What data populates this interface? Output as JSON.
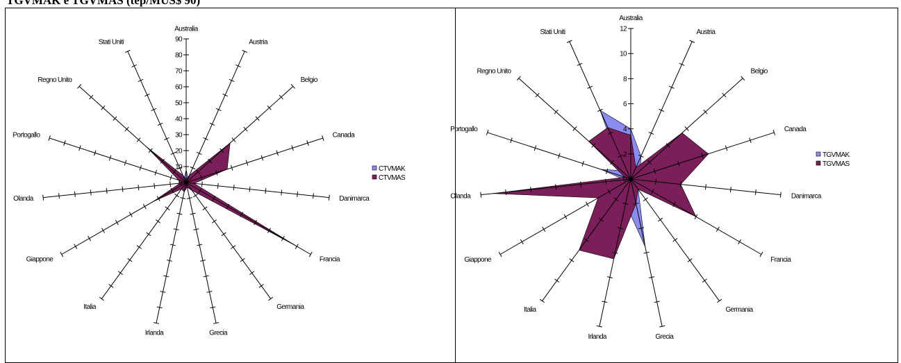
{
  "title": "TGVMAK e TGVMAS (tep/MUS$ 90)",
  "chart_data": [
    {
      "type": "radar",
      "categories": [
        "Australia",
        "Austria",
        "Belgio",
        "Canada",
        "Danimarca",
        "Francia",
        "Germania",
        "Grecia",
        "Irlanda",
        "Italia",
        "Giappone",
        "Olanda",
        "Portogallo",
        "Regno Unito",
        "Stati Uniti"
      ],
      "ylim": [
        0,
        90
      ],
      "ticks": [
        "0",
        "10",
        "20",
        "30",
        "40",
        "50",
        "60",
        "70",
        "80",
        "90"
      ],
      "tick_step": 10,
      "series": [
        {
          "name": "CTVMAK",
          "color": "#8c8cf0",
          "values": [
            8,
            3,
            2,
            2,
            1,
            1,
            1,
            2,
            3,
            2,
            3,
            4,
            3,
            4,
            3
          ]
        },
        {
          "name": "CTVMAS",
          "color": "#7b1f5a",
          "values": [
            2,
            5,
            37,
            27,
            5,
            79,
            6,
            3,
            6,
            5,
            24,
            4,
            5,
            34,
            5
          ]
        }
      ],
      "legend_position": "right"
    },
    {
      "type": "radar",
      "categories": [
        "Australia",
        "Austria",
        "Belgio",
        "Canada",
        "Danimarca",
        "Francia",
        "Germania",
        "Grecia",
        "Irlanda",
        "Italia",
        "Giappone",
        "Olanda",
        "Portogallo",
        "Regno Unito",
        "Stati Uniti"
      ],
      "ylim": [
        0,
        12
      ],
      "ticks": [
        "0",
        "2",
        "4",
        "6",
        "8",
        "10",
        "12"
      ],
      "tick_step": 2,
      "series": [
        {
          "name": "TGVMAK",
          "color": "#8c8cf0",
          "values": [
            4,
            2,
            1,
            1,
            0.5,
            1,
            1,
            5.5,
            2,
            0.8,
            0.5,
            0.5,
            2.5,
            1,
            6
          ]
        },
        {
          "name": "TGVMAS",
          "color": "#7b1f5a",
          "values": [
            3.5,
            1,
            5.5,
            6.5,
            4,
            6,
            1,
            2,
            6.5,
            7,
            3,
            11,
            0.5,
            4.5,
            4.5
          ]
        }
      ],
      "legend_position": "right"
    }
  ]
}
